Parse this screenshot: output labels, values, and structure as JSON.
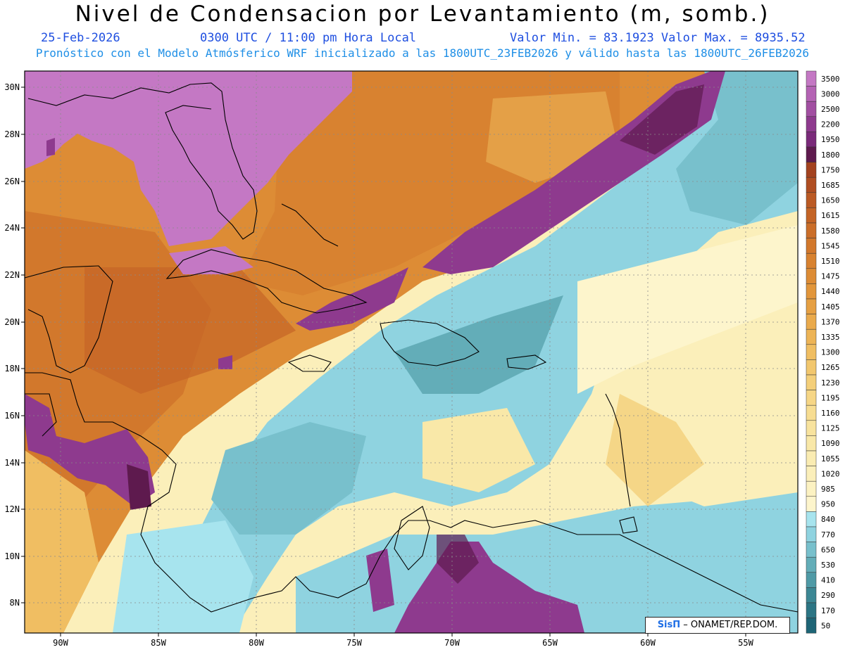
{
  "header": {
    "title": "Nivel de Condensacion por Levantamiento (m, somb.)",
    "date": "25-Feb-2026",
    "time": "0300 UTC / 11:00 pm Hora Local",
    "min_max": "Valor Min. = 83.1923  Valor Max. = 8935.52",
    "model_info": "Pronóstico con el Modelo Atmósferico WRF inicializado a las 1800UTC_23FEB2026 y válido hasta las  1800UTC_26FEB2026"
  },
  "axes": {
    "lat_labels": [
      "30N",
      "28N",
      "26N",
      "24N",
      "22N",
      "20N",
      "18N",
      "16N",
      "14N",
      "12N",
      "10N",
      "8N"
    ],
    "lon_labels": [
      "90W",
      "85W",
      "80W",
      "75W",
      "70W",
      "65W",
      "60W",
      "55W"
    ]
  },
  "colorbar": {
    "levels": [
      "3500",
      "3000",
      "2500",
      "2200",
      "1950",
      "1800",
      "1750",
      "1685",
      "1650",
      "1615",
      "1580",
      "1545",
      "1510",
      "1475",
      "1440",
      "1405",
      "1370",
      "1335",
      "1300",
      "1265",
      "1230",
      "1195",
      "1160",
      "1125",
      "1090",
      "1055",
      "1020",
      "985",
      "950",
      "840",
      "770",
      "650",
      "530",
      "410",
      "290",
      "170",
      "50"
    ],
    "colors": [
      "#c478c4",
      "#b463b4",
      "#a24fa2",
      "#8e3a8e",
      "#7a2a7a",
      "#5e1a4e",
      "#a3421f",
      "#b04e22",
      "#bb5a24",
      "#c46426",
      "#cb6e29",
      "#d2782c",
      "#d88230",
      "#dd8c35",
      "#e2963b",
      "#e6a043",
      "#eaaa4c",
      "#edb456",
      "#f0be62",
      "#f2c76e",
      "#f4cf7a",
      "#f6d686",
      "#f7dd92",
      "#f8e39e",
      "#f9e8a8",
      "#faecb2",
      "#fbefba",
      "#fcf2c2",
      "#fdf5cc",
      "#a7e4ee",
      "#8fd3e0",
      "#78c0cc",
      "#63adb8",
      "#4f9aa6",
      "#3c8794",
      "#2c7584",
      "#1e6576"
    ]
  },
  "credit": {
    "brand": "SisΠ",
    "org": "– ONAMET/REP.DOM."
  }
}
